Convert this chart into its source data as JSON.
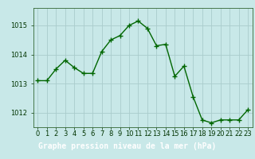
{
  "x": [
    0,
    1,
    2,
    3,
    4,
    5,
    6,
    7,
    8,
    9,
    10,
    11,
    12,
    13,
    14,
    15,
    16,
    17,
    18,
    19,
    20,
    21,
    22,
    23
  ],
  "y": [
    1013.1,
    1013.1,
    1013.5,
    1013.8,
    1013.55,
    1013.35,
    1013.35,
    1014.1,
    1014.5,
    1014.65,
    1015.0,
    1015.15,
    1014.9,
    1014.3,
    1014.35,
    1013.25,
    1013.6,
    1012.55,
    1011.75,
    1011.65,
    1011.75,
    1011.75,
    1011.75,
    1012.1
  ],
  "line_color": "#006600",
  "marker_color": "#006600",
  "bg_color": "#c8e8e8",
  "grid_color": "#aacccc",
  "axis_color": "#336633",
  "xlabel": "Graphe pression niveau de la mer (hPa)",
  "xlabel_color": "#003300",
  "tick_color": "#003300",
  "ytick_label_color": "#003300",
  "bottom_bar_color": "#006600",
  "ylim": [
    1011.5,
    1015.6
  ],
  "yticks": [
    1012,
    1013,
    1014,
    1015
  ],
  "xticks": [
    0,
    1,
    2,
    3,
    4,
    5,
    6,
    7,
    8,
    9,
    10,
    11,
    12,
    13,
    14,
    15,
    16,
    17,
    18,
    19,
    20,
    21,
    22,
    23
  ],
  "xtick_labels": [
    "0",
    "1",
    "2",
    "3",
    "4",
    "5",
    "6",
    "7",
    "8",
    "9",
    "10",
    "11",
    "12",
    "13",
    "14",
    "15",
    "16",
    "17",
    "18",
    "19",
    "20",
    "21",
    "22",
    "23"
  ],
  "marker_size": 4.0,
  "line_width": 1.0,
  "tick_font_size": 6.0,
  "xlabel_font_size": 7.0
}
